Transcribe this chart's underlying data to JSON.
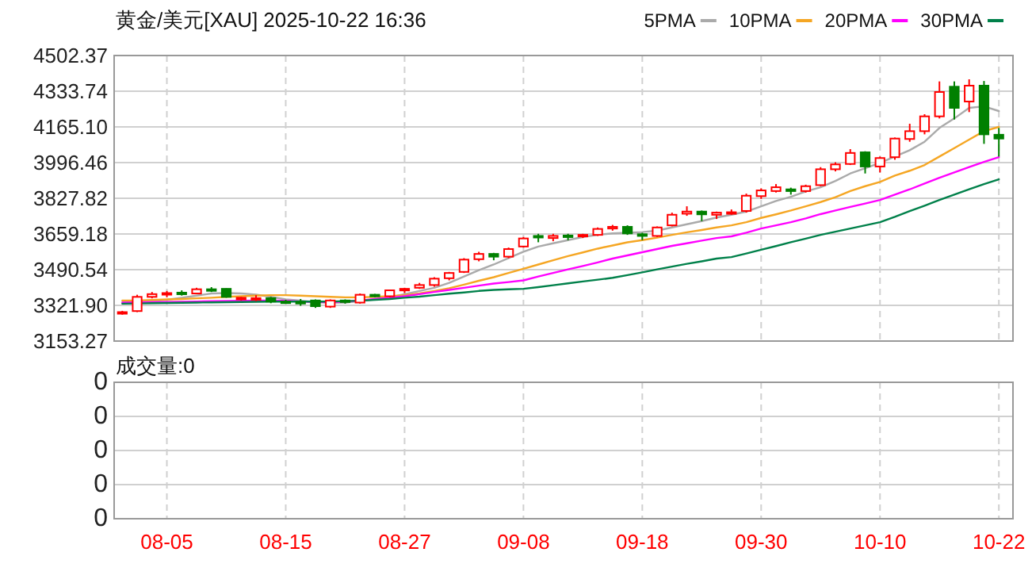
{
  "chart_data": [
    {
      "type": "candlestick",
      "title": "黄金/美元[XAU] 2025-10-22 16:36",
      "legend": "top right",
      "grid": true,
      "tick_labels": "y",
      "categories": [
        null,
        null,
        null,
        null,
        null,
        null,
        null,
        null,
        null,
        null,
        null,
        null,
        null,
        null,
        null,
        null,
        null,
        null,
        null,
        null,
        null,
        null,
        null,
        null,
        null,
        null,
        null,
        null,
        null,
        null,
        null,
        null,
        null,
        null,
        null,
        null,
        null,
        null,
        null,
        null,
        null,
        null,
        null,
        null,
        null,
        null,
        null,
        null,
        null,
        null,
        null,
        null,
        null,
        null,
        null,
        null,
        null,
        null,
        null,
        null
      ],
      "ylim": [
        3153.27,
        4502.37
      ],
      "yticks": [
        3153.27,
        {
          "value": 3321.9,
          "label": "3321.90"
        },
        3490.54,
        3659.18,
        3827.82,
        3996.46,
        {
          "value": 4165.1,
          "label": "4165.10"
        },
        4333.74,
        4502.37
      ],
      "ohlc": [
        [
          3285,
          3296,
          3278,
          3290
        ],
        [
          3295,
          3372,
          3290,
          3362
        ],
        [
          3362,
          3385,
          3355,
          3375
        ],
        [
          3375,
          3390,
          3360,
          3380
        ],
        [
          3382,
          3393,
          3368,
          3375
        ],
        [
          3378,
          3405,
          3375,
          3398
        ],
        [
          3398,
          3408,
          3385,
          3395
        ],
        [
          3400,
          3402,
          3358,
          3362
        ],
        [
          3355,
          3362,
          3345,
          3358
        ],
        [
          3350,
          3370,
          3342,
          3356
        ],
        [
          3356,
          3362,
          3332,
          3340
        ],
        [
          3340,
          3348,
          3330,
          3336
        ],
        [
          3338,
          3352,
          3320,
          3335
        ],
        [
          3345,
          3350,
          3310,
          3318
        ],
        [
          3316,
          3350,
          3310,
          3345
        ],
        [
          3345,
          3350,
          3330,
          3338
        ],
        [
          3335,
          3378,
          3330,
          3372
        ],
        [
          3372,
          3376,
          3360,
          3366
        ],
        [
          3365,
          3396,
          3360,
          3393
        ],
        [
          3395,
          3405,
          3380,
          3400
        ],
        [
          3405,
          3428,
          3400,
          3418
        ],
        [
          3418,
          3455,
          3410,
          3448
        ],
        [
          3450,
          3480,
          3440,
          3475
        ],
        [
          3480,
          3545,
          3475,
          3538
        ],
        [
          3540,
          3575,
          3530,
          3565
        ],
        [
          3565,
          3570,
          3535,
          3552
        ],
        [
          3552,
          3595,
          3545,
          3588
        ],
        [
          3600,
          3645,
          3595,
          3638
        ],
        [
          3650,
          3660,
          3620,
          3648
        ],
        [
          3640,
          3660,
          3625,
          3650
        ],
        [
          3652,
          3660,
          3630,
          3645
        ],
        [
          3648,
          3660,
          3640,
          3655
        ],
        [
          3655,
          3690,
          3650,
          3683
        ],
        [
          3685,
          3702,
          3675,
          3693
        ],
        [
          3693,
          3700,
          3655,
          3662
        ],
        [
          3658,
          3665,
          3630,
          3650
        ],
        [
          3650,
          3695,
          3645,
          3690
        ],
        [
          3700,
          3760,
          3695,
          3750
        ],
        [
          3755,
          3790,
          3745,
          3765
        ],
        [
          3765,
          3770,
          3720,
          3752
        ],
        [
          3750,
          3765,
          3730,
          3760
        ],
        [
          3758,
          3775,
          3750,
          3762
        ],
        [
          3768,
          3850,
          3760,
          3840
        ],
        [
          3838,
          3875,
          3825,
          3865
        ],
        [
          3862,
          3895,
          3855,
          3880
        ],
        [
          3870,
          3878,
          3845,
          3862
        ],
        [
          3862,
          3892,
          3855,
          3885
        ],
        [
          3890,
          3975,
          3885,
          3965
        ],
        [
          3965,
          3998,
          3955,
          3988
        ],
        [
          3990,
          4060,
          3985,
          4042
        ],
        [
          4045,
          4050,
          3945,
          3978
        ],
        [
          3978,
          4025,
          3950,
          4018
        ],
        [
          4022,
          4115,
          4010,
          4110
        ],
        [
          4108,
          4180,
          4095,
          4145
        ],
        [
          4145,
          4225,
          4130,
          4215
        ],
        [
          4215,
          4380,
          4205,
          4330
        ],
        [
          4355,
          4380,
          4200,
          4255
        ],
        [
          4285,
          4390,
          4235,
          4360
        ],
        [
          4360,
          4382,
          4085,
          4130
        ],
        [
          4128,
          4160,
          4025,
          4110
        ]
      ],
      "series": [
        {
          "type": "line",
          "name": "5PMA",
          "color": "#aaaaaa",
          "values": [
            3335,
            3338,
            3342,
            3348,
            3358,
            3368,
            3378,
            3380,
            3378,
            3373,
            3362,
            3350,
            3345,
            3337,
            3335,
            3335,
            3342,
            3350,
            3360,
            3375,
            3390,
            3405,
            3428,
            3458,
            3488,
            3515,
            3545,
            3575,
            3600,
            3615,
            3630,
            3645,
            3655,
            3662,
            3665,
            3668,
            3675,
            3690,
            3705,
            3720,
            3737,
            3750,
            3765,
            3790,
            3815,
            3835,
            3860,
            3880,
            3910,
            3945,
            3970,
            3995,
            4025,
            4055,
            4095,
            4160,
            4205,
            4255,
            4262,
            4240
          ]
        },
        {
          "type": "line",
          "name": "10PMA",
          "color": "#f5a623",
          "values": [
            3345,
            3345,
            3347,
            3350,
            3352,
            3355,
            3358,
            3362,
            3365,
            3368,
            3370,
            3370,
            3368,
            3365,
            3362,
            3360,
            3360,
            3362,
            3365,
            3370,
            3378,
            3390,
            3403,
            3420,
            3438,
            3455,
            3475,
            3495,
            3515,
            3535,
            3555,
            3572,
            3590,
            3605,
            3620,
            3630,
            3642,
            3655,
            3667,
            3678,
            3690,
            3700,
            3715,
            3735,
            3752,
            3770,
            3790,
            3810,
            3833,
            3862,
            3885,
            3905,
            3935,
            3958,
            3985,
            4025,
            4065,
            4105,
            4145,
            4165
          ]
        },
        {
          "type": "line",
          "name": "20PMA",
          "color": "#ff00ff",
          "values": [
            3335,
            3336,
            3337,
            3338,
            3339,
            3340,
            3342,
            3343,
            3344,
            3345,
            3345,
            3344,
            3340,
            3338,
            3337,
            3340,
            3345,
            3352,
            3358,
            3365,
            3375,
            3385,
            3395,
            3405,
            3415,
            3425,
            3432,
            3440,
            3458,
            3475,
            3492,
            3508,
            3525,
            3543,
            3558,
            3573,
            3588,
            3603,
            3615,
            3628,
            3640,
            3648,
            3665,
            3685,
            3700,
            3715,
            3733,
            3753,
            3770,
            3787,
            3803,
            3820,
            3845,
            3870,
            3898,
            3925,
            3950,
            3975,
            4000,
            4022
          ]
        },
        {
          "type": "line",
          "name": "30PMA",
          "color": "#00804a",
          "values": [
            3330,
            3331,
            3332,
            3333,
            3334,
            3335,
            3336,
            3337,
            3338,
            3339,
            3340,
            3340,
            3340,
            3340,
            3340,
            3342,
            3344,
            3348,
            3352,
            3358,
            3363,
            3370,
            3377,
            3383,
            3390,
            3395,
            3398,
            3400,
            3408,
            3417,
            3426,
            3435,
            3443,
            3452,
            3465,
            3478,
            3492,
            3505,
            3518,
            3530,
            3543,
            3550,
            3567,
            3585,
            3602,
            3620,
            3637,
            3655,
            3670,
            3685,
            3700,
            3715,
            3740,
            3767,
            3793,
            3820,
            3845,
            3870,
            3895,
            3917
          ]
        }
      ]
    },
    {
      "type": "other",
      "title": "成交量:0",
      "categories": [
        null,
        null,
        null,
        "08-05",
        null,
        null,
        null,
        null,
        null,
        null,
        null,
        "08-15",
        null,
        null,
        null,
        null,
        null,
        null,
        null,
        "08-27",
        null,
        null,
        null,
        null,
        null,
        null,
        null,
        "09-08",
        null,
        null,
        null,
        null,
        null,
        null,
        null,
        "09-18",
        null,
        null,
        null,
        null,
        null,
        null,
        null,
        "09-30",
        null,
        null,
        null,
        null,
        null,
        null,
        null,
        "10-10",
        null,
        null,
        null,
        null,
        null,
        null,
        null,
        "10-22"
      ],
      "annotations": [
        "0",
        "0",
        "0",
        "0",
        "0"
      ]
    }
  ]
}
